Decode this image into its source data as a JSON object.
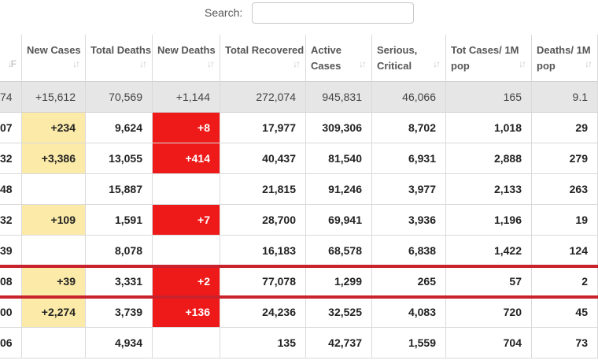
{
  "search": {
    "label": "Search:",
    "value": ""
  },
  "columns": [
    {
      "key": "c0",
      "header": "",
      "sort_icon": "↓F"
    },
    {
      "key": "new_cases",
      "header": "New Cases",
      "sort_icon": "↓↑"
    },
    {
      "key": "total_deaths",
      "header": "Total Deaths",
      "sort_icon": "↓↑"
    },
    {
      "key": "new_deaths",
      "header": "New Deaths",
      "sort_icon": "↓↑"
    },
    {
      "key": "total_recovered",
      "header": "Total Recovered",
      "sort_icon": "↓↑"
    },
    {
      "key": "active_cases",
      "header": "Active Cases",
      "sort_icon": "↓↑"
    },
    {
      "key": "serious_critical",
      "header": "Serious, Critical",
      "sort_icon": "↓↑"
    },
    {
      "key": "tot_cases_1m",
      "header": "Tot Cases/ 1M pop",
      "sort_icon": "↓↑"
    },
    {
      "key": "deaths_1m",
      "header": "Deaths/ 1M pop",
      "sort_icon": "↓↑"
    }
  ],
  "total_row": [
    "74",
    "+15,612",
    "70,569",
    "+1,144",
    "272,074",
    "945,831",
    "46,066",
    "165",
    "9.1"
  ],
  "rows": [
    [
      "07",
      "+234",
      "9,624",
      "+8",
      "17,977",
      "309,306",
      "8,702",
      "1,018",
      "29"
    ],
    [
      "32",
      "+3,386",
      "13,055",
      "+414",
      "40,437",
      "81,540",
      "6,931",
      "2,888",
      "279"
    ],
    [
      "48",
      "",
      "15,887",
      "",
      "21,815",
      "91,246",
      "3,977",
      "2,133",
      "263"
    ],
    [
      "32",
      "+109",
      "1,591",
      "+7",
      "28,700",
      "69,941",
      "3,936",
      "1,196",
      "19"
    ],
    [
      "39",
      "",
      "8,078",
      "",
      "16,183",
      "68,578",
      "6,838",
      "1,422",
      "124"
    ],
    [
      "08",
      "+39",
      "3,331",
      "+2",
      "77,078",
      "1,299",
      "265",
      "57",
      "2"
    ],
    [
      "00",
      "+2,274",
      "3,739",
      "+136",
      "24,236",
      "32,525",
      "4,083",
      "720",
      "45"
    ],
    [
      "06",
      "",
      "4,934",
      "",
      "135",
      "42,737",
      "1,559",
      "704",
      "73"
    ]
  ],
  "highlighted_row_index": 5,
  "colors": {
    "new_cases_bg": "#fbeaa8",
    "new_deaths_bg": "#ee1a1a",
    "total_row_bg": "#e6e6e6",
    "highlight_line": "#c8222c"
  }
}
